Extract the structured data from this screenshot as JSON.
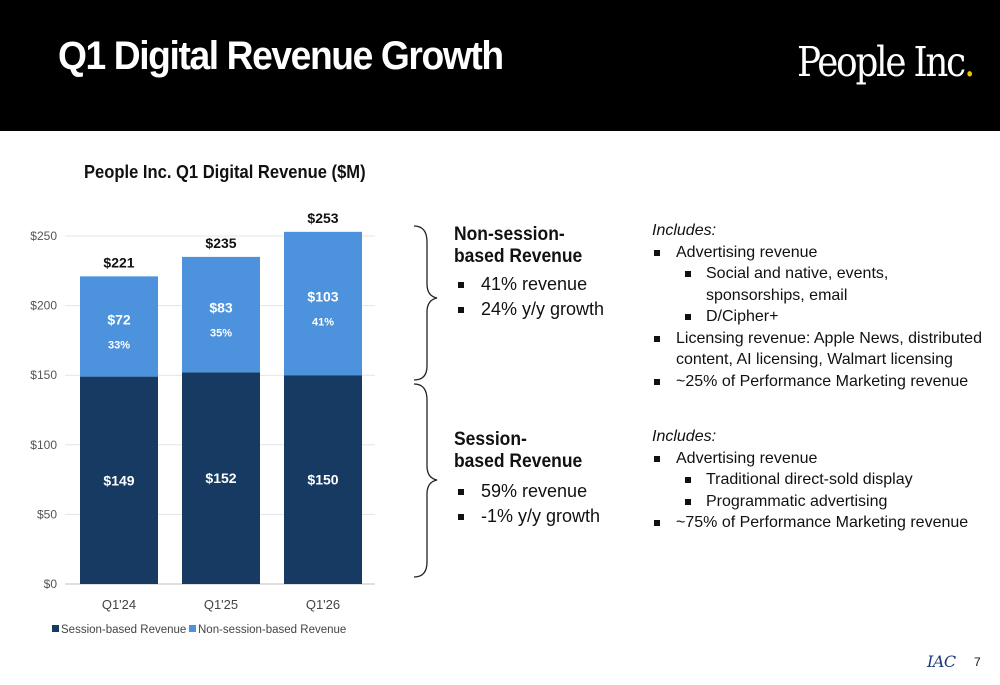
{
  "slide": {
    "title": "Q1 Digital Revenue Growth",
    "logo_text": "People Inc",
    "logo_dot": ".",
    "page_number": "7",
    "footer_logo": "IAC"
  },
  "chart_data": {
    "type": "bar",
    "stacked": true,
    "title": "People Inc. Q1 Digital Revenue ($M)",
    "categories": [
      "Q1'24",
      "Q1'25",
      "Q1'26"
    ],
    "series": [
      {
        "name": "Session-based Revenue",
        "values": [
          149,
          152,
          150
        ],
        "color": "#163a62",
        "labels": [
          "$149",
          "$152",
          "$150"
        ]
      },
      {
        "name": "Non-session-based Revenue",
        "values": [
          72,
          83,
          103
        ],
        "color": "#4c92dc",
        "labels": [
          "$72",
          "$83",
          "$103"
        ],
        "share_labels": [
          "33%",
          "35%",
          "41%"
        ]
      }
    ],
    "totals": [
      "$221",
      "$235",
      "$253"
    ],
    "ylim": [
      0,
      250
    ],
    "yticks": [
      0,
      50,
      100,
      150,
      200,
      250
    ],
    "ytick_labels": [
      "$0",
      "$50",
      "$100",
      "$150",
      "$200",
      "$250"
    ],
    "grid": true,
    "legend": "bottom"
  },
  "non_session": {
    "heading": "Non-session-\nbased Revenue",
    "bullets": [
      "41% revenue",
      "24% y/y growth"
    ],
    "includes_label": "Includes:",
    "items": [
      {
        "level": 1,
        "lines": [
          "Advertising revenue"
        ]
      },
      {
        "level": 2,
        "lines": [
          "Social and native, events,",
          "sponsorships, email"
        ]
      },
      {
        "level": 2,
        "lines": [
          "D/Cipher+"
        ]
      },
      {
        "level": 1,
        "lines": [
          "Licensing revenue: Apple News, distributed",
          "content, AI licensing, Walmart licensing"
        ]
      },
      {
        "level": 1,
        "lines": [
          "~25% of Performance Marketing revenue"
        ]
      }
    ]
  },
  "session": {
    "heading": "Session-\nbased Revenue",
    "bullets": [
      "59% revenue",
      "-1% y/y growth"
    ],
    "includes_label": "Includes:",
    "items": [
      {
        "level": 1,
        "lines": [
          "Advertising revenue"
        ]
      },
      {
        "level": 2,
        "lines": [
          "Traditional direct-sold display"
        ]
      },
      {
        "level": 2,
        "lines": [
          "Programmatic advertising"
        ]
      },
      {
        "level": 1,
        "lines": [
          "~75% of Performance Marketing revenue"
        ]
      }
    ]
  }
}
